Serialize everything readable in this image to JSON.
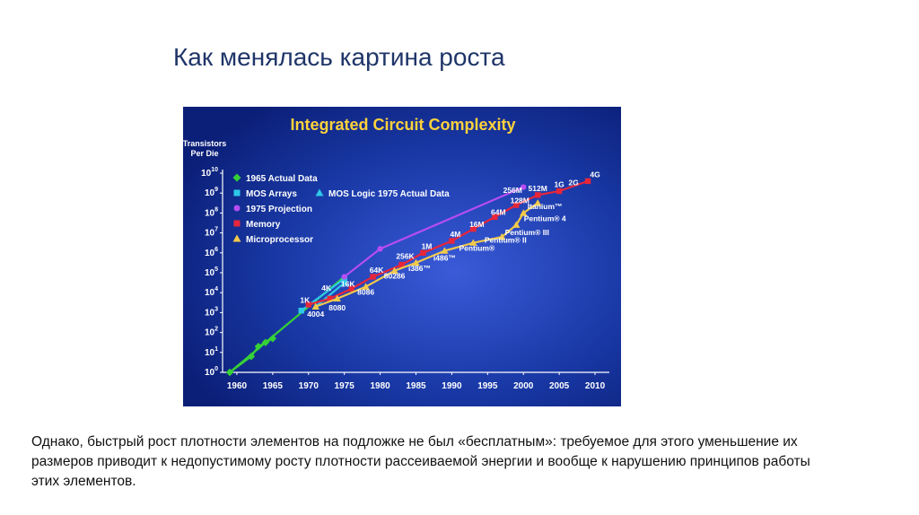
{
  "slide": {
    "title": "Как менялась картина роста",
    "body_text": "Однако, быстрый рост плотности элементов на подложке не был «бесплатным»: требуемое для этого уменьшение их размеров приводит к недопустимому росту плотности рассеиваемой энергии и вообще к нарушению принципов работы этих элементов."
  },
  "chart_data": {
    "type": "line",
    "title": "Integrated Circuit Complexity",
    "ylabel": "Transistors Per Die",
    "y_scale": "log",
    "xlim": [
      1958,
      2012
    ],
    "ylim_exp": [
      0,
      10
    ],
    "x_ticks": [
      "1960",
      "1965",
      "1970",
      "1975",
      "1980",
      "1985",
      "1990",
      "1995",
      "2000",
      "2005",
      "2010"
    ],
    "y_ticks": [
      "10^0",
      "10^1",
      "10^2",
      "10^3",
      "10^4",
      "10^5",
      "10^6",
      "10^7",
      "10^8",
      "10^9",
      "10^10"
    ],
    "colors": {
      "background": "#0d2a8c",
      "text": "#ffffff",
      "title": "#ffd23c",
      "actual_1965": "#36d136",
      "mos_arrays": "#2ec8e8",
      "mos_logic": "#2ec8e8",
      "projection": "#b64df2",
      "memory": "#e8263a",
      "microprocessor": "#f2c94a"
    },
    "legend": [
      {
        "key": "actual_1965",
        "label": "1965 Actual Data",
        "marker": "diamond"
      },
      {
        "key": "mos_arrays",
        "label": "MOS Arrays",
        "marker": "square"
      },
      {
        "key": "mos_logic",
        "label": "MOS Logic 1975 Actual Data",
        "marker": "triangle"
      },
      {
        "key": "projection",
        "label": "1975 Projection",
        "marker": "circle"
      },
      {
        "key": "memory",
        "label": "Memory",
        "marker": "square"
      },
      {
        "key": "microprocessor",
        "label": "Microprocessor",
        "marker": "triangle"
      }
    ],
    "series": [
      {
        "key": "actual_1965",
        "name": "1965 Actual Data",
        "marker": "diamond",
        "points": [
          [
            1959,
            0
          ],
          [
            1962,
            0.8
          ],
          [
            1963,
            1.3
          ],
          [
            1964,
            1.5
          ],
          [
            1965,
            1.7
          ]
        ]
      },
      {
        "key": "actual_1965_line",
        "marker": "none",
        "points": [
          [
            1959,
            0
          ],
          [
            1975,
            4.8
          ]
        ]
      },
      {
        "key": "mos_arrays",
        "name": "MOS Arrays",
        "marker": "square",
        "points": [
          [
            1969,
            3.1
          ],
          [
            1975,
            4.7
          ]
        ]
      },
      {
        "key": "mos_logic",
        "name": "MOS Logic 1975 Actual Data",
        "marker": "triangle",
        "points": [
          [
            1971,
            3.3
          ],
          [
            1975,
            4.5
          ]
        ]
      },
      {
        "key": "projection",
        "name": "1975 Projection",
        "marker": "circle",
        "points": [
          [
            1975,
            4.8
          ],
          [
            1980,
            6.2
          ],
          [
            2000,
            9.3
          ]
        ]
      },
      {
        "key": "memory",
        "name": "Memory",
        "marker": "square",
        "points": [
          [
            1970,
            3.4
          ],
          [
            1973,
            3.7
          ],
          [
            1976,
            4.2
          ],
          [
            1979,
            4.8
          ],
          [
            1983,
            5.4
          ],
          [
            1986,
            6.0
          ],
          [
            1990,
            6.6
          ],
          [
            1993,
            7.2
          ],
          [
            1996,
            7.8
          ],
          [
            1999,
            8.4
          ],
          [
            2002,
            8.9
          ],
          [
            2005,
            9.1
          ],
          [
            2009,
            9.6
          ]
        ]
      },
      {
        "key": "microprocessor",
        "name": "Microprocessor",
        "marker": "triangle",
        "points": [
          [
            1971,
            3.3
          ],
          [
            1974,
            3.7
          ],
          [
            1978,
            4.3
          ],
          [
            1982,
            5.1
          ],
          [
            1985,
            5.5
          ],
          [
            1989,
            6.1
          ],
          [
            1993,
            6.5
          ],
          [
            1997,
            6.8
          ],
          [
            1999,
            7.4
          ],
          [
            2000,
            8.0
          ],
          [
            2002,
            8.5
          ]
        ]
      }
    ],
    "annotations": [
      {
        "text": "1K",
        "x": 1969.5,
        "y": 3.5
      },
      {
        "text": "4K",
        "x": 1972.5,
        "y": 4.1
      },
      {
        "text": "16K",
        "x": 1975.5,
        "y": 4.3
      },
      {
        "text": "64K",
        "x": 1979.5,
        "y": 5.0
      },
      {
        "text": "256K",
        "x": 1983.5,
        "y": 5.7
      },
      {
        "text": "1M",
        "x": 1986.5,
        "y": 6.2
      },
      {
        "text": "4M",
        "x": 1990.5,
        "y": 6.8
      },
      {
        "text": "16M",
        "x": 1993.5,
        "y": 7.3
      },
      {
        "text": "64M",
        "x": 1996.5,
        "y": 7.9
      },
      {
        "text": "128M",
        "x": 1999.5,
        "y": 8.5
      },
      {
        "text": "256M",
        "x": 1998.5,
        "y": 9.0
      },
      {
        "text": "512M",
        "x": 2002,
        "y": 9.1
      },
      {
        "text": "1G",
        "x": 2005,
        "y": 9.3
      },
      {
        "text": "2G",
        "x": 2007,
        "y": 9.4
      },
      {
        "text": "4G",
        "x": 2010,
        "y": 9.8
      },
      {
        "text": "4004",
        "x": 1971,
        "y": 2.8
      },
      {
        "text": "8080",
        "x": 1974,
        "y": 3.1
      },
      {
        "text": "8086",
        "x": 1978,
        "y": 3.9
      },
      {
        "text": "80286",
        "x": 1982,
        "y": 4.7
      },
      {
        "text": "i386™",
        "x": 1985.5,
        "y": 5.1
      },
      {
        "text": "i486™",
        "x": 1989,
        "y": 5.6
      },
      {
        "text": "Pentium®",
        "x": 1993.5,
        "y": 6.1
      },
      {
        "text": "Pentium® II",
        "x": 1997.5,
        "y": 6.5
      },
      {
        "text": "Pentium® III",
        "x": 2000.5,
        "y": 6.9
      },
      {
        "text": "Pentium® 4",
        "x": 2003,
        "y": 7.6
      },
      {
        "text": "Itanium™",
        "x": 2003,
        "y": 8.2
      }
    ]
  }
}
